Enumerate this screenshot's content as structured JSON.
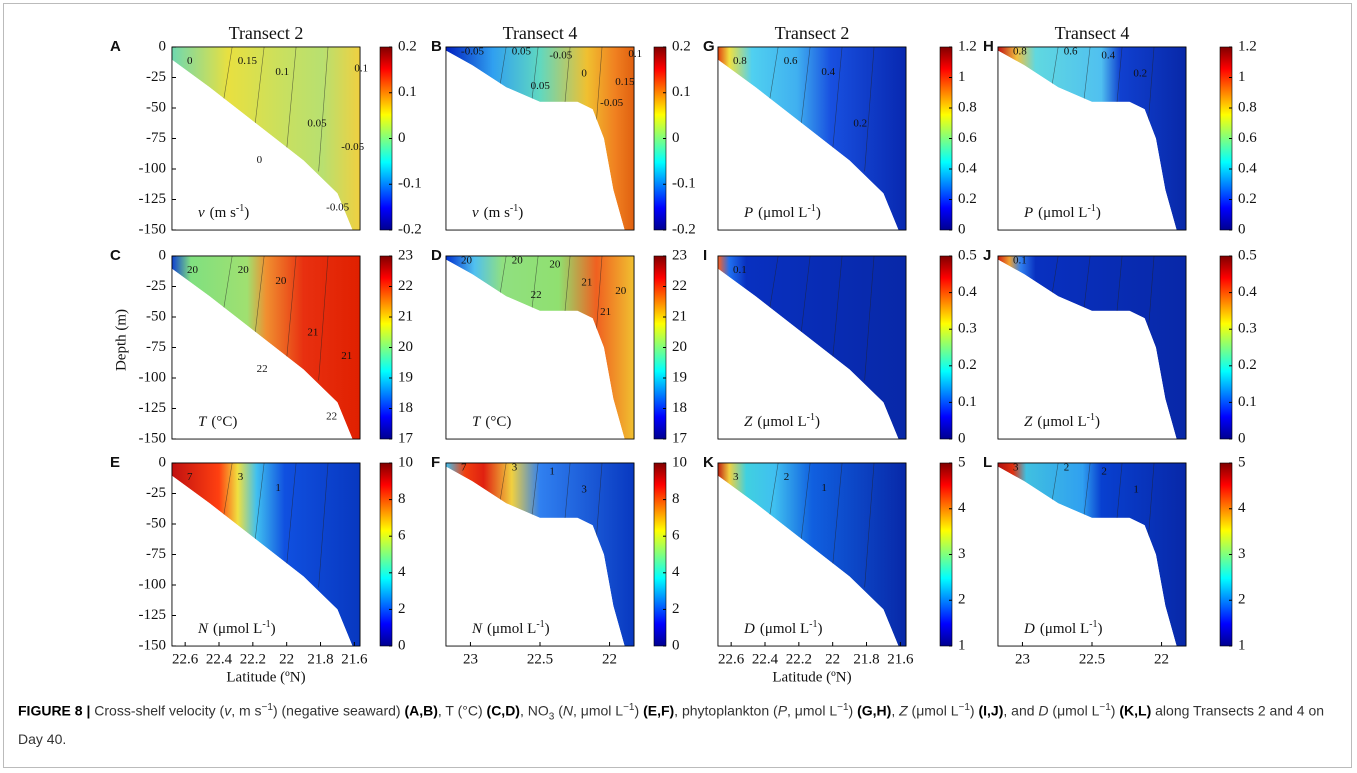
{
  "panels": [
    {
      "letter": "A",
      "title": "Transect 2",
      "yticks": [
        "0",
        "-25",
        "-50",
        "-75",
        "-100",
        "-125",
        "-150"
      ],
      "colorbar": [
        "0.2",
        "0.1",
        "0",
        "-0.1",
        "-0.2"
      ],
      "variable": {
        "symbol": "v",
        "unit": "(m s",
        "exp": "-1",
        "close": ")"
      },
      "contours": [
        "0",
        "0.15",
        "0.1",
        "0.05",
        "0",
        "-0.05",
        "-0.05",
        "0.1"
      ]
    },
    {
      "letter": "B",
      "title": "Transect 4",
      "colorbar": [
        "0.2",
        "0.1",
        "0",
        "-0.1",
        "-0.2"
      ],
      "variable": {
        "symbol": "v",
        "unit": "(m s",
        "exp": "-1",
        "close": ")"
      },
      "contours": [
        "-0.05",
        "0.05",
        "-0.05",
        "0",
        "0.05",
        "-0.05",
        "0.15",
        "0.1"
      ]
    },
    {
      "letter": "G",
      "title": "Transect 2",
      "colorbar": [
        "1.2",
        "1",
        "0.8",
        "0.6",
        "0.4",
        "0.2",
        "0"
      ],
      "variable": {
        "symbol": "P",
        "unit": "(μmol L",
        "exp": "-1",
        "close": ")"
      },
      "contours": [
        "0.8",
        "0.6",
        "0.4",
        "0.2"
      ]
    },
    {
      "letter": "H",
      "title": "Transect 4",
      "colorbar": [
        "1.2",
        "1",
        "0.8",
        "0.6",
        "0.4",
        "0.2",
        "0"
      ],
      "variable": {
        "symbol": "P",
        "unit": "(μmol L",
        "exp": "-1",
        "close": ")"
      },
      "contours": [
        "0.8",
        "0.6",
        "0.4",
        "0.2"
      ]
    },
    {
      "letter": "C",
      "yticks": [
        "0",
        "-25",
        "-50",
        "-75",
        "-100",
        "-125",
        "-150"
      ],
      "colorbar": [
        "23",
        "22",
        "21",
        "20",
        "19",
        "18",
        "17"
      ],
      "variable": {
        "symbol": "T",
        "unit": "(°C)"
      },
      "contours": [
        "20",
        "20",
        "20",
        "21",
        "22",
        "22",
        "21"
      ]
    },
    {
      "letter": "D",
      "colorbar": [
        "23",
        "22",
        "21",
        "20",
        "19",
        "18",
        "17"
      ],
      "variable": {
        "symbol": "T",
        "unit": "(°C)"
      },
      "contours": [
        "20",
        "20",
        "20",
        "21",
        "22",
        "21",
        "20"
      ]
    },
    {
      "letter": "I",
      "colorbar": [
        "0.5",
        "0.4",
        "0.3",
        "0.2",
        "0.1",
        "0"
      ],
      "variable": {
        "symbol": "Z",
        "unit": "(μmol L",
        "exp": "-1",
        "close": ")"
      },
      "contours": [
        "0.1"
      ]
    },
    {
      "letter": "J",
      "colorbar": [
        "0.5",
        "0.4",
        "0.3",
        "0.2",
        "0.1",
        "0"
      ],
      "variable": {
        "symbol": "Z",
        "unit": "(μmol L",
        "exp": "-1",
        "close": ")"
      },
      "contours": [
        "0.1"
      ]
    },
    {
      "letter": "E",
      "yticks": [
        "0",
        "-25",
        "-50",
        "-75",
        "-100",
        "-125",
        "-150"
      ],
      "xticks": [
        "22.6",
        "22.4",
        "22.2",
        "22",
        "21.8",
        "21.6"
      ],
      "xlabel": "Latitude (ºN)",
      "colorbar": [
        "10",
        "8",
        "6",
        "4",
        "2",
        "0"
      ],
      "variable": {
        "symbol": "N",
        "unit": "(μmol L",
        "exp": "-1",
        "close": ")"
      },
      "contours": [
        "7",
        "3",
        "1"
      ]
    },
    {
      "letter": "F",
      "xticks": [
        "23",
        "22.5",
        "22"
      ],
      "colorbar": [
        "10",
        "8",
        "6",
        "4",
        "2",
        "0"
      ],
      "variable": {
        "symbol": "N",
        "unit": "(μmol L",
        "exp": "-1",
        "close": ")"
      },
      "contours": [
        "7",
        "3",
        "1",
        "3"
      ]
    },
    {
      "letter": "K",
      "xticks": [
        "22.6",
        "22.4",
        "22.2",
        "22",
        "21.8",
        "21.6"
      ],
      "xlabel": "Latitude (ºN)",
      "colorbar": [
        "5",
        "4",
        "3",
        "2",
        "1"
      ],
      "variable": {
        "symbol": "D",
        "unit": "(μmol L",
        "exp": "-1",
        "close": ")"
      },
      "contours": [
        "3",
        "2",
        "1"
      ]
    },
    {
      "letter": "L",
      "xticks": [
        "23",
        "22.5",
        "22"
      ],
      "colorbar": [
        "5",
        "4",
        "3",
        "2",
        "1"
      ],
      "variable": {
        "symbol": "D",
        "unit": "(μmol L",
        "exp": "-1",
        "close": ")"
      },
      "contours": [
        "3",
        "2",
        "2",
        "1"
      ]
    }
  ],
  "depth_label": "Depth (m)",
  "caption": {
    "parts": [
      "FIGURE 8 |",
      " Cross-shelf velocity (",
      "v",
      ", m s",
      "−1",
      ") (negative seaward) ",
      "(A,B)",
      ", T (°C) ",
      "(C,D)",
      ", NO",
      "3",
      " (",
      "N",
      ", μmol L",
      "−1",
      ") ",
      "(E,F)",
      ", phytoplankton (",
      "P",
      ", μmol L",
      "−1",
      ") ",
      "(G,H)",
      ", ",
      "Z",
      " (μmol L",
      "−1",
      ") ",
      "(I,J)",
      ", and ",
      "D",
      " (μmol L",
      "−1",
      ") ",
      "(K,L)",
      " along Transects 2 and 4 on Day 40."
    ]
  }
}
